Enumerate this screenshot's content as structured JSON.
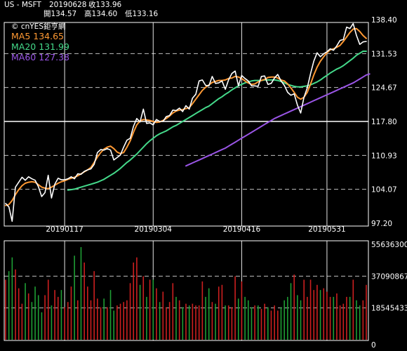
{
  "header": {
    "symbol": "US - MSFT",
    "date": "20190628",
    "close_label": "收133.96",
    "open_label": "開134.57",
    "high_label": "高134.60",
    "low_label": "低133.16"
  },
  "legend": {
    "brand": "© cnYES鉅亨網",
    "ma5": "MA5 134.65",
    "ma20": "MA20 131.99",
    "ma60": "MA60 127.38"
  },
  "colors": {
    "price": "#ffffff",
    "ma5": "#ff9933",
    "ma20": "#44d98a",
    "ma60": "#9a55e6",
    "vol_up": "#cc1f1f",
    "vol_down": "#1e9e34",
    "grid": "#ffffff",
    "text": "#ffffff"
  },
  "chart_data": [
    {
      "type": "line",
      "yticks": [
        "138.40",
        "131.53",
        "124.67",
        "117.80",
        "110.93",
        "104.07",
        "97.20"
      ],
      "ylim": [
        97.2,
        138.4
      ],
      "xticks": [
        "20190117",
        "20190304",
        "20190416",
        "20190531"
      ],
      "highlight_level": 117.8,
      "series": [
        {
          "name": "MA5",
          "values": [
            100.8,
            101.0,
            101.8,
            103.0,
            104.0,
            104.8,
            105.3,
            105.5,
            105.6,
            105.5,
            105.0,
            104.5,
            104.3,
            104.2,
            104.5,
            104.9,
            105.3,
            105.6,
            105.8,
            106.1,
            106.3,
            106.5,
            106.8,
            107.2,
            107.6,
            108.0,
            108.5,
            109.5,
            110.6,
            111.5,
            112.2,
            112.6,
            112.8,
            112.3,
            111.6,
            111.3,
            111.5,
            112.6,
            113.9,
            115.6,
            117.1,
            117.9,
            118.2,
            118.1,
            118.0,
            117.8,
            117.6,
            117.7,
            118.0,
            118.4,
            118.9,
            119.5,
            119.9,
            120.1,
            120.2,
            120.4,
            120.6,
            121.4,
            122.3,
            123.2,
            124.1,
            124.7,
            125.2,
            125.7,
            125.9,
            126.1,
            126.1,
            126.2,
            126.5,
            126.6,
            126.9,
            126.8,
            126.5,
            126.0,
            125.6,
            125.3,
            125.4,
            125.8,
            126.1,
            126.3,
            126.7,
            126.8,
            126.8,
            126.6,
            126.2,
            126.0,
            125.4,
            124.6,
            123.7,
            122.7,
            122.3,
            122.7,
            123.7,
            125.4,
            127.2,
            128.8,
            130.0,
            130.9,
            131.7,
            132.3,
            132.5,
            132.8,
            133.2,
            134.0,
            134.9,
            135.8,
            136.5,
            136.6,
            136.0,
            135.2,
            134.6
          ]
        },
        {
          "name": "MA20",
          "values": [
            null,
            null,
            null,
            null,
            null,
            null,
            null,
            null,
            null,
            null,
            null,
            null,
            null,
            null,
            null,
            null,
            null,
            null,
            null,
            103.9,
            104.0,
            104.1,
            104.3,
            104.5,
            104.7,
            104.9,
            105.1,
            105.3,
            105.5,
            105.8,
            106.1,
            106.5,
            106.9,
            107.3,
            107.8,
            108.3,
            108.9,
            109.5,
            110.0,
            110.6,
            111.2,
            111.9,
            112.6,
            113.3,
            113.9,
            114.4,
            114.9,
            115.3,
            115.6,
            115.9,
            116.3,
            116.7,
            117.0,
            117.4,
            117.8,
            118.2,
            118.6,
            119.0,
            119.4,
            119.8,
            120.2,
            120.6,
            120.9,
            121.4,
            121.9,
            122.4,
            122.8,
            123.3,
            123.7,
            124.2,
            124.6,
            125.0,
            125.3,
            125.6,
            125.8,
            126.0,
            126.1,
            126.1,
            126.1,
            126.2,
            126.2,
            126.2,
            126.2,
            126.1,
            125.9,
            125.6,
            125.3,
            125.1,
            124.9,
            124.8,
            124.8,
            124.9,
            125.0,
            125.2,
            125.5,
            125.8,
            126.2,
            126.7,
            127.1,
            127.6,
            128.0,
            128.4,
            128.7,
            129.1,
            129.6,
            130.1,
            130.6,
            131.2,
            131.6,
            132.0,
            132.0
          ]
        },
        {
          "name": "MA60",
          "values": [
            null,
            null,
            null,
            null,
            null,
            null,
            null,
            null,
            null,
            null,
            null,
            null,
            null,
            null,
            null,
            null,
            null,
            null,
            null,
            null,
            null,
            null,
            null,
            null,
            null,
            null,
            null,
            null,
            null,
            null,
            null,
            null,
            null,
            null,
            null,
            null,
            null,
            null,
            null,
            null,
            null,
            null,
            null,
            null,
            null,
            null,
            null,
            null,
            null,
            null,
            null,
            null,
            null,
            null,
            null,
            108.8,
            109.1,
            109.4,
            109.7,
            110.0,
            110.3,
            110.6,
            110.9,
            111.2,
            111.5,
            111.8,
            112.1,
            112.4,
            112.8,
            113.2,
            113.6,
            114.0,
            114.4,
            114.8,
            115.2,
            115.6,
            116.0,
            116.4,
            116.8,
            117.2,
            117.6,
            118.0,
            118.4,
            118.7,
            119.0,
            119.3,
            119.6,
            119.9,
            120.2,
            120.5,
            120.8,
            121.1,
            121.4,
            121.7,
            122.0,
            122.3,
            122.6,
            122.9,
            123.2,
            123.5,
            123.8,
            124.1,
            124.4,
            124.7,
            125.0,
            125.3,
            125.6,
            126.0,
            126.4,
            126.8,
            127.2,
            127.4
          ]
        },
        {
          "name": "price",
          "values": [
            101.2,
            100.5,
            97.6,
            104.5,
            105.5,
            106.5,
            105.9,
            106.6,
            106.2,
            105.9,
            104.6,
            102.6,
            103.4,
            106.9,
            102.3,
            105.1,
            106.3,
            106.0,
            106.0,
            106.2,
            106.6,
            106.2,
            107.2,
            107.1,
            107.7,
            108.0,
            108.2,
            109.1,
            111.5,
            112.1,
            112.0,
            112.3,
            112.0,
            110.0,
            110.5,
            111.0,
            112.6,
            114.0,
            114.4,
            116.8,
            118.4,
            117.7,
            120.3,
            117.4,
            117.5,
            117.1,
            118.2,
            117.8,
            117.8,
            118.8,
            119.0,
            120.1,
            120.0,
            120.5,
            119.8,
            121.0,
            120.3,
            122.5,
            123.3,
            126.0,
            126.2,
            125.1,
            125.0,
            126.9,
            125.5,
            125.6,
            126.0,
            124.3,
            126.2,
            127.5,
            128.0,
            125.0,
            127.1,
            126.5,
            126.0,
            125.0,
            125.0,
            124.9,
            126.9,
            127.0,
            125.3,
            125.5,
            126.6,
            127.3,
            126.0,
            125.1,
            123.7,
            123.1,
            123.4,
            121.1,
            119.5,
            122.7,
            124.6,
            127.5,
            130.0,
            131.7,
            130.9,
            131.5,
            131.9,
            132.5,
            132.2,
            133.1,
            134.2,
            134.4,
            136.9,
            136.6,
            137.6,
            135.2,
            133.4,
            133.9,
            134.0
          ]
        }
      ]
    },
    {
      "type": "bar",
      "yticks": [
        "55636300",
        "37090867",
        "18545433",
        "0"
      ],
      "ylim": [
        0,
        55636300
      ],
      "series": [
        {
          "name": "volume",
          "values": [
            35000000,
            40000000,
            48000000,
            41000000,
            30000000,
            21000000,
            33000000,
            27000000,
            22000000,
            31000000,
            26000000,
            16000000,
            26000000,
            35000000,
            20000000,
            29000000,
            25000000,
            29000000,
            19000000,
            22000000,
            31000000,
            49000000,
            23000000,
            54000000,
            45000000,
            31000000,
            23000000,
            40000000,
            24000000,
            19000000,
            24000000,
            19000000,
            29000000,
            17000000,
            20000000,
            21000000,
            22000000,
            23000000,
            33000000,
            45000000,
            48000000,
            32000000,
            37000000,
            25000000,
            35000000,
            35000000,
            30000000,
            22000000,
            28000000,
            19000000,
            22000000,
            33000000,
            25000000,
            23000000,
            19000000,
            21000000,
            20000000,
            21000000,
            20000000,
            20000000,
            34000000,
            25000000,
            30000000,
            22000000,
            21000000,
            31000000,
            32000000,
            20000000,
            20000000,
            19000000,
            37000000,
            24000000,
            34000000,
            25000000,
            23000000,
            19000000,
            20000000,
            20000000,
            18000000,
            21000000,
            19000000,
            17000000,
            20000000,
            17000000,
            19000000,
            23000000,
            25000000,
            33000000,
            38000000,
            26000000,
            23000000,
            35000000,
            25000000,
            35000000,
            29000000,
            32000000,
            29000000,
            30000000,
            28000000,
            25000000,
            25000000,
            27000000,
            20000000,
            21000000,
            25000000,
            25000000,
            35000000,
            23000000,
            20000000,
            23000000,
            32000000
          ]
        },
        {
          "name": "direction",
          "values": [
            1,
            -1,
            -1,
            1,
            1,
            1,
            -1,
            1,
            -1,
            -1,
            -1,
            -1,
            1,
            1,
            -1,
            1,
            1,
            -1,
            1,
            1,
            1,
            -1,
            1,
            -1,
            1,
            1,
            1,
            1,
            1,
            1,
            -1,
            1,
            -1,
            -1,
            1,
            1,
            1,
            1,
            1,
            1,
            1,
            -1,
            1,
            -1,
            1,
            -1,
            1,
            -1,
            1,
            1,
            1,
            1,
            -1,
            1,
            -1,
            1,
            -1,
            1,
            1,
            1,
            1,
            -1,
            -1,
            1,
            -1,
            1,
            1,
            -1,
            1,
            1,
            1,
            -1,
            1,
            -1,
            -1,
            -1,
            1,
            -1,
            1,
            1,
            -1,
            1,
            1,
            1,
            -1,
            -1,
            -1,
            -1,
            1,
            -1,
            -1,
            1,
            1,
            1,
            1,
            1,
            -1,
            1,
            1,
            1,
            -1,
            1,
            1,
            1,
            1,
            -1,
            1,
            -1,
            -1,
            1,
            1
          ]
        }
      ]
    }
  ]
}
